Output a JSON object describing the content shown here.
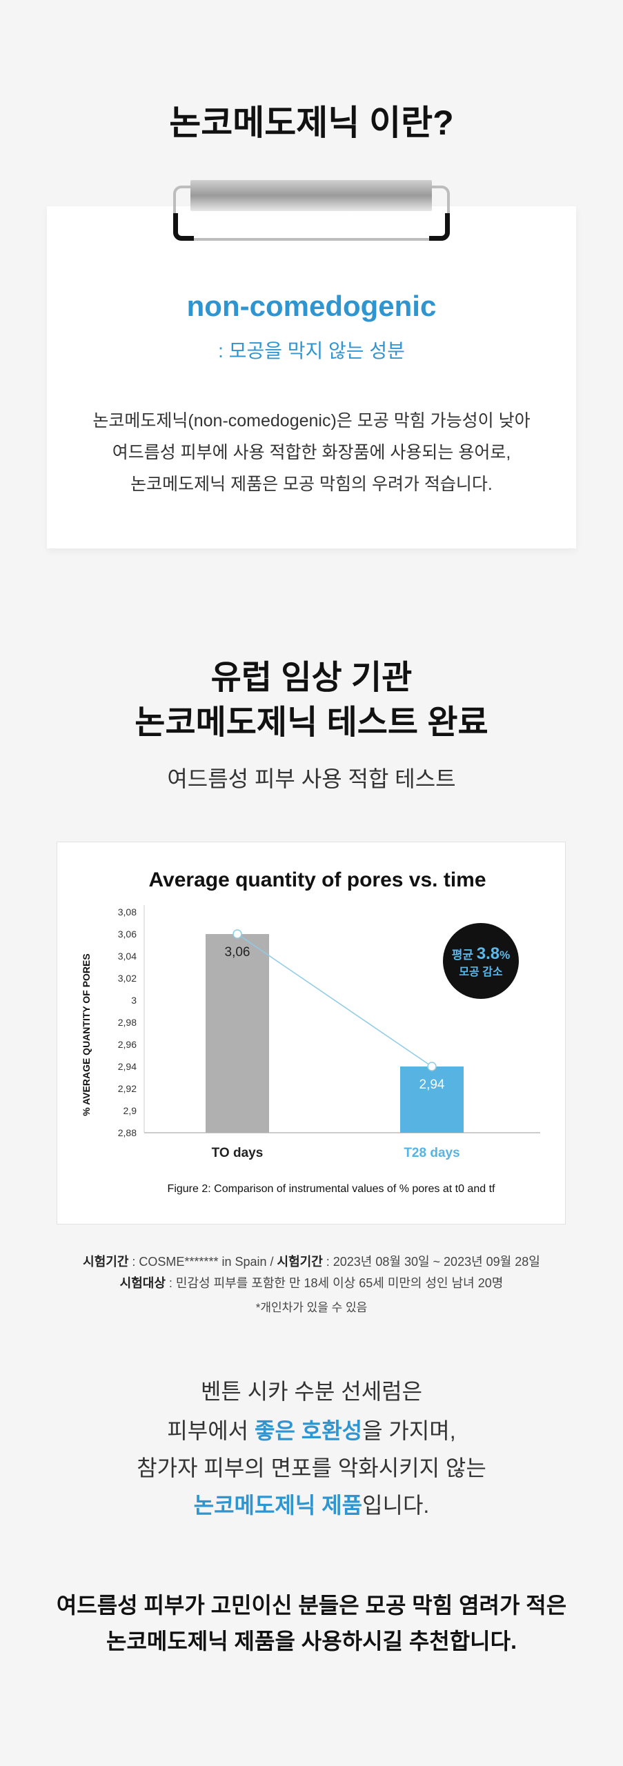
{
  "section1": {
    "title": "논코메도제닉 이란?",
    "term": "non-comedogenic",
    "term_meaning": ": 모공을 막지 않는 성분",
    "body": [
      "논코메도제닉(non-comedogenic)은 모공 막힘 가능성이 낮아",
      "여드름성 피부에 사용 적합한 화장품에 사용되는 용어로,",
      "논코메도제닉 제품은 모공 막힘의 우려가 적습니다."
    ]
  },
  "section2": {
    "title_line1": "유럽 임상 기관",
    "title_line2": "논코메도제닉 테스트 완료",
    "subtitle": "여드름성 피부 사용 적합 테스트"
  },
  "chart_data": {
    "type": "bar",
    "title": "Average quantity of pores vs. time",
    "ylabel": "% AVERAGE QUANTITY OF PORES",
    "xlabel": "",
    "categories": [
      "TO days",
      "T28 days"
    ],
    "values": [
      3.06,
      2.94
    ],
    "data_labels": [
      "3,06",
      "2,94"
    ],
    "ylim": [
      2.88,
      3.08
    ],
    "yticks": [
      "3,08",
      "3,06",
      "3,04",
      "3,02",
      "3",
      "2,98",
      "2,96",
      "2,94",
      "2,92",
      "2,9",
      "2,88"
    ],
    "bar_colors": [
      "#b0b0b0",
      "#56b3e2"
    ],
    "line_color": "#8ecbe6",
    "grid": false,
    "caption": "Figure 2: Comparison of instrumental values of % pores at t0 and tf",
    "badge": {
      "prefix": "평균",
      "value": "3.8",
      "unit": "%",
      "line2": "모공 감소",
      "color": "#111111",
      "text_color": "#5ab8ea"
    }
  },
  "footnote": {
    "label1": "시험기간",
    "text1": " : COSME******* in Spain / ",
    "label2": "시험기간",
    "text2": " : 2023년 08월 30일 ~ 2023년 09월 28일",
    "label3": "시험대상",
    "text3": " : 민감성 피부를 포함한 만 18세 이상 65세 미만의 성인 남녀 20명",
    "note": "*개인차가 있을 수 있음"
  },
  "section3": {
    "line1": "벤튼 시카 수분 선세럼은",
    "line2_pre": "피부에서 ",
    "line2_hl": "좋은 호환성",
    "line2_post": "을 가지며,",
    "line3": "참가자 피부의 면포를 악화시키지 않는",
    "line4_hl": "논코메도제닉 제품",
    "line4_post": "입니다."
  },
  "closing": {
    "line1": "여드름성 피부가 고민이신 분들은 모공 막힘 염려가 적은",
    "line2": "논코메도제닉 제품을 사용하시길 추천합니다."
  }
}
